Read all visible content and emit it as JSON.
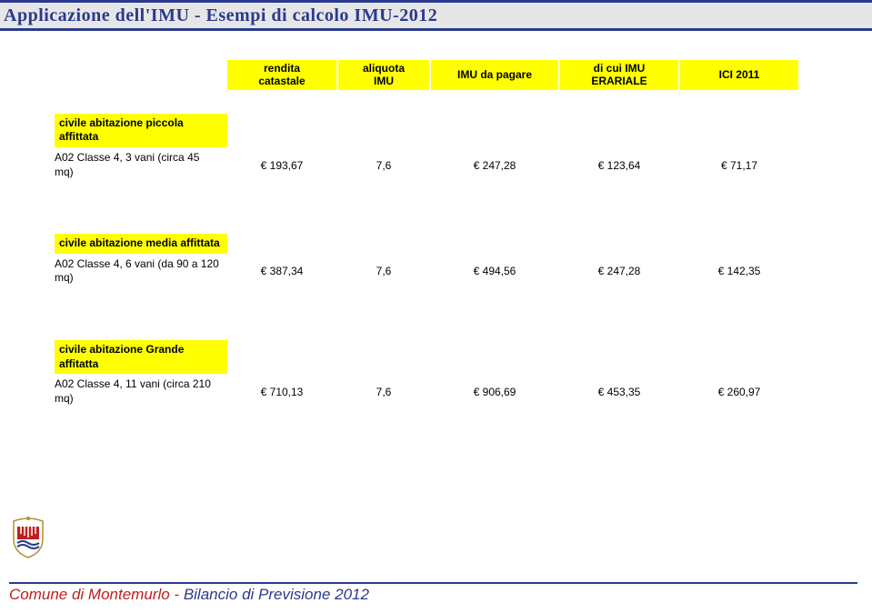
{
  "title": "Applicazione dell'IMU  -  Esempi di calcolo IMU-2012",
  "headers": {
    "c1a": "rendita",
    "c1b": "catastale",
    "c2a": "aliquota",
    "c2b": "IMU",
    "c3": "IMU da pagare",
    "c4a": "di cui IMU",
    "c4b": "ERARIALE",
    "c5": "ICI 2011"
  },
  "sections": [
    {
      "label": "civile abitazione piccola affittata",
      "desc": "A02 Classe 4, 3 vani (circa 45 mq)",
      "c1": "€ 193,67",
      "c2": "7,6",
      "c3": "€ 247,28",
      "c4": "€ 123,64",
      "c5": "€ 71,17"
    },
    {
      "label": "civile abitazione media affittata",
      "desc": "A02 Classe 4,  6 vani (da 90 a 120 mq)",
      "c1": "€ 387,34",
      "c2": "7,6",
      "c3": "€ 494,56",
      "c4": "€ 247,28",
      "c5": "€ 142,35"
    },
    {
      "label": "civile abitazione Grande affitatta",
      "desc": "A02 Classe 4, 11 vani (circa 210 mq)",
      "c1": "€ 710,13",
      "c2": "7,6",
      "c3": "€ 906,69",
      "c4": "€ 453,35",
      "c5": "€ 260,97"
    }
  ],
  "footer": {
    "part1": "Comune di Montemurlo -  ",
    "part2": "Bilancio di Previsione 2012"
  },
  "colors": {
    "accent": "#2a3a8f",
    "highlight": "#ffff00",
    "header_bg": "#e6e6e6",
    "footer_red": "#c02020"
  },
  "spacing": {
    "section_gap_extra": 60
  }
}
